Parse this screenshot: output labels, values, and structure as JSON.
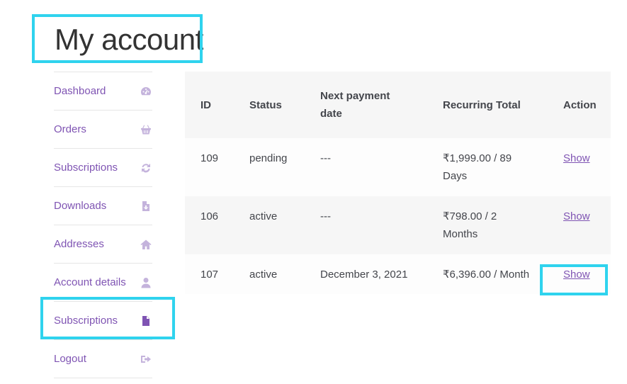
{
  "page": {
    "title": "My account"
  },
  "nav": {
    "items": [
      {
        "label": "Dashboard",
        "icon": "gauge-icon"
      },
      {
        "label": "Orders",
        "icon": "basket-icon"
      },
      {
        "label": "Subscriptions",
        "icon": "refresh-icon"
      },
      {
        "label": "Downloads",
        "icon": "file-download-icon"
      },
      {
        "label": "Addresses",
        "icon": "home-icon"
      },
      {
        "label": "Account details",
        "icon": "user-icon"
      },
      {
        "label": "Subscriptions",
        "icon": "document-icon",
        "active": true
      },
      {
        "label": "Logout",
        "icon": "sign-out-icon"
      }
    ]
  },
  "table": {
    "headers": [
      "ID",
      "Status",
      "Next payment date",
      "Recurring Total",
      "Action"
    ],
    "rows": [
      {
        "id": "109",
        "status": "pending",
        "next_payment": "---",
        "total": "₹1,999.00 / 89 Days",
        "action": "Show"
      },
      {
        "id": "106",
        "status": "active",
        "next_payment": "---",
        "total": "₹798.00 / 2 Months",
        "action": "Show"
      },
      {
        "id": "107",
        "status": "active",
        "next_payment": "December 3, 2021",
        "total": "₹6,396.00 / Month",
        "action": "Show"
      }
    ]
  },
  "colors": {
    "link": "#7f54b3",
    "icon_muted": "#c4b3dc",
    "highlight": "#2fd3ee"
  }
}
